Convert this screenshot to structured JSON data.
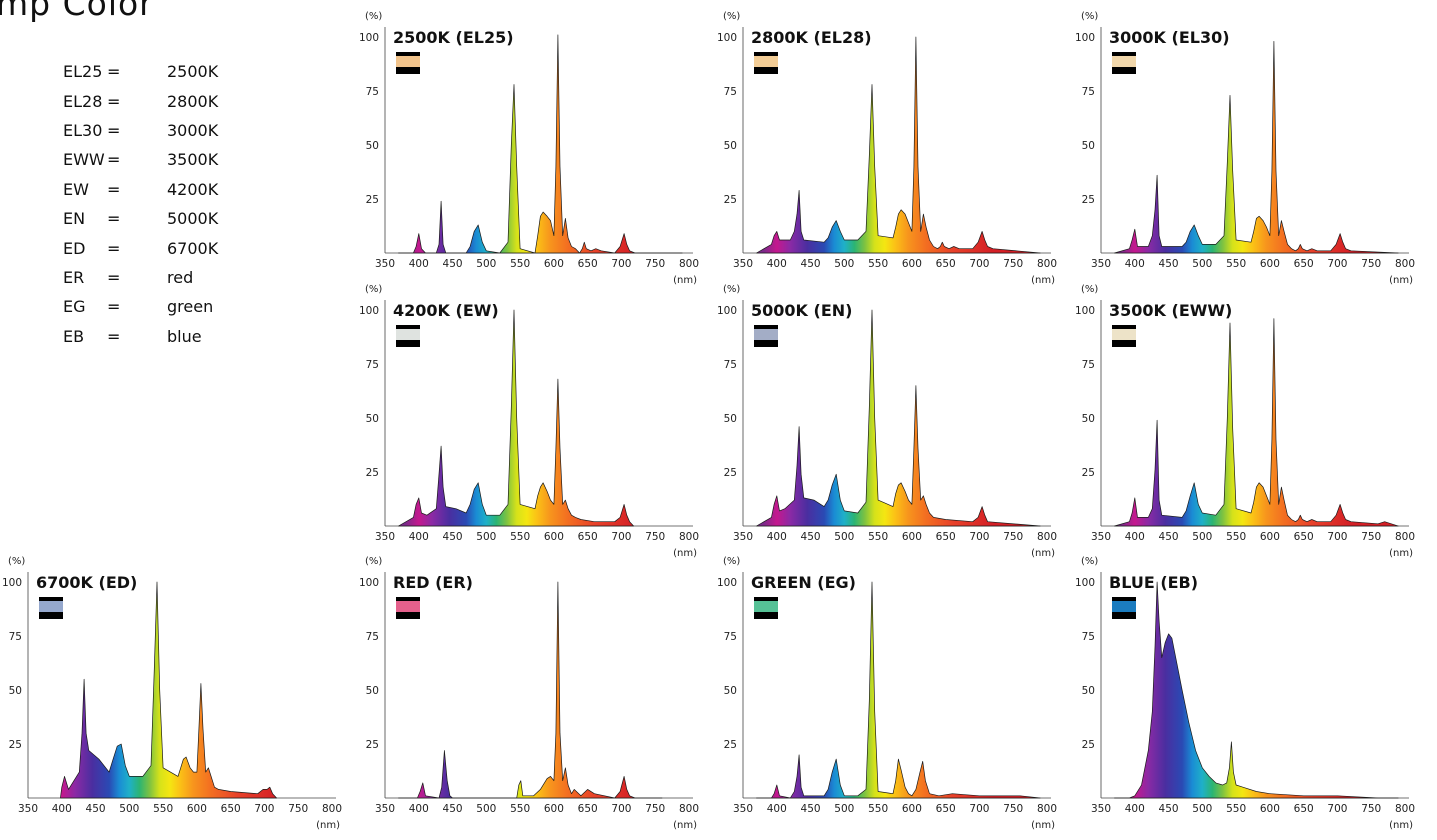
{
  "page": {
    "title": "mp Color"
  },
  "legend": [
    {
      "code": "EL25",
      "eq": "=",
      "value": "2500K"
    },
    {
      "code": "EL28",
      "eq": "=",
      "value": "2800K"
    },
    {
      "code": "EL30",
      "eq": "=",
      "value": "3000K"
    },
    {
      "code": "EWW",
      "eq": "=",
      "value": "3500K"
    },
    {
      "code": "EW",
      "eq": "=",
      "value": "4200K"
    },
    {
      "code": "EN",
      "eq": "=",
      "value": "5000K"
    },
    {
      "code": "ED",
      "eq": "=",
      "value": "6700K"
    },
    {
      "code": "ER",
      "eq": "=",
      "value": "red"
    },
    {
      "code": "EG",
      "eq": "=",
      "value": "green"
    },
    {
      "code": "EB",
      "eq": "=",
      "value": "blue"
    }
  ],
  "axis": {
    "y_unit": "(%)",
    "x_unit": "(nm)",
    "y_ticks": [
      25,
      50,
      75,
      100
    ],
    "x_ticks": [
      350,
      400,
      450,
      500,
      550,
      600,
      650,
      700,
      750,
      800
    ],
    "xlim": [
      350,
      800
    ],
    "ylim": [
      0,
      100
    ]
  },
  "chart_data": [
    {
      "type": "area",
      "title": "2500K (EL25)",
      "swatch": "#f2c48c",
      "x": [
        370,
        392,
        396,
        400,
        404,
        410,
        426,
        430,
        433,
        436,
        440,
        470,
        476,
        482,
        488,
        494,
        500,
        520,
        532,
        537,
        541,
        545,
        550,
        572,
        576,
        580,
        584,
        590,
        595,
        600,
        603,
        606,
        609,
        613,
        617,
        621,
        626,
        632,
        638,
        642,
        645,
        648,
        655,
        662,
        670,
        690,
        698,
        704,
        708,
        712,
        720,
        790
      ],
      "y": [
        0,
        0,
        3,
        9,
        2,
        0,
        0,
        4,
        24,
        4,
        0,
        0,
        3,
        10,
        13,
        5,
        1,
        0,
        5,
        50,
        78,
        40,
        2,
        0,
        8,
        17,
        19,
        17,
        15,
        8,
        40,
        101,
        40,
        8,
        16,
        7,
        3,
        2,
        0,
        2,
        5,
        2,
        1,
        2,
        1,
        0,
        3,
        9,
        4,
        1,
        0,
        0
      ]
    },
    {
      "type": "area",
      "title": "2800K (EL28)",
      "swatch": "#f3cd96",
      "x": [
        370,
        392,
        396,
        400,
        404,
        420,
        426,
        430,
        433,
        436,
        440,
        470,
        476,
        482,
        488,
        494,
        500,
        520,
        532,
        537,
        541,
        545,
        550,
        572,
        576,
        580,
        584,
        590,
        595,
        600,
        603,
        606,
        609,
        613,
        617,
        621,
        626,
        632,
        638,
        642,
        645,
        648,
        655,
        662,
        670,
        690,
        698,
        704,
        708,
        712,
        720,
        790
      ],
      "y": [
        0,
        4,
        8,
        10,
        6,
        6,
        10,
        18,
        29,
        10,
        6,
        5,
        7,
        12,
        15,
        10,
        6,
        6,
        10,
        45,
        78,
        40,
        8,
        7,
        12,
        18,
        20,
        18,
        14,
        10,
        40,
        100,
        40,
        10,
        18,
        12,
        6,
        3,
        2,
        3,
        5,
        3,
        2,
        3,
        2,
        2,
        5,
        10,
        6,
        3,
        2,
        0
      ]
    },
    {
      "type": "area",
      "title": "3000K (EL30)",
      "swatch": "#f1d7ab",
      "x": [
        370,
        392,
        396,
        400,
        404,
        420,
        426,
        430,
        433,
        436,
        440,
        470,
        476,
        482,
        488,
        494,
        500,
        520,
        532,
        537,
        541,
        545,
        550,
        572,
        576,
        580,
        584,
        590,
        595,
        600,
        603,
        606,
        609,
        613,
        617,
        621,
        626,
        632,
        638,
        642,
        645,
        648,
        655,
        662,
        670,
        690,
        698,
        704,
        708,
        712,
        720,
        790
      ],
      "y": [
        0,
        2,
        6,
        11,
        3,
        3,
        8,
        20,
        36,
        8,
        3,
        3,
        5,
        10,
        13,
        8,
        4,
        4,
        8,
        42,
        73,
        38,
        6,
        5,
        10,
        16,
        17,
        15,
        12,
        8,
        38,
        98,
        38,
        8,
        15,
        10,
        4,
        2,
        1,
        2,
        4,
        2,
        1,
        2,
        1,
        1,
        4,
        9,
        5,
        2,
        1,
        0
      ]
    },
    {
      "type": "area",
      "title": "4200K (EW)",
      "swatch": "#dfe3e0",
      "x": [
        370,
        392,
        396,
        400,
        404,
        412,
        426,
        430,
        433,
        436,
        440,
        455,
        470,
        476,
        482,
        488,
        494,
        500,
        520,
        532,
        537,
        541,
        545,
        550,
        572,
        576,
        580,
        584,
        590,
        595,
        600,
        603,
        606,
        609,
        613,
        617,
        621,
        626,
        632,
        640,
        660,
        690,
        698,
        704,
        708,
        712,
        718
      ],
      "y": [
        0,
        4,
        10,
        13,
        6,
        5,
        8,
        24,
        37,
        18,
        9,
        8,
        6,
        10,
        17,
        20,
        10,
        5,
        5,
        10,
        55,
        100,
        50,
        10,
        8,
        14,
        18,
        20,
        16,
        12,
        10,
        36,
        68,
        36,
        10,
        12,
        8,
        5,
        4,
        3,
        2,
        2,
        4,
        10,
        5,
        2,
        0
      ]
    },
    {
      "type": "area",
      "title": "5000K (EN)",
      "swatch": "#a3adc6",
      "x": [
        370,
        392,
        396,
        400,
        404,
        412,
        426,
        430,
        433,
        436,
        440,
        455,
        470,
        476,
        482,
        488,
        494,
        500,
        520,
        532,
        537,
        541,
        545,
        550,
        572,
        576,
        580,
        584,
        590,
        595,
        600,
        603,
        606,
        609,
        613,
        617,
        621,
        626,
        632,
        650,
        690,
        698,
        704,
        708,
        712,
        790
      ],
      "y": [
        0,
        4,
        10,
        14,
        7,
        8,
        12,
        28,
        46,
        24,
        13,
        12,
        9,
        12,
        19,
        24,
        12,
        7,
        6,
        11,
        55,
        100,
        50,
        12,
        9,
        15,
        19,
        20,
        16,
        12,
        10,
        36,
        65,
        36,
        12,
        14,
        10,
        6,
        4,
        3,
        2,
        4,
        9,
        5,
        2,
        0
      ]
    },
    {
      "type": "area",
      "title": "3500K (EWW)",
      "swatch": "#ede3c8",
      "x": [
        370,
        392,
        396,
        400,
        404,
        420,
        426,
        430,
        433,
        436,
        440,
        470,
        476,
        482,
        488,
        494,
        500,
        520,
        532,
        537,
        541,
        545,
        550,
        572,
        576,
        580,
        584,
        590,
        595,
        600,
        603,
        606,
        609,
        613,
        617,
        621,
        626,
        632,
        638,
        642,
        645,
        648,
        655,
        662,
        670,
        690,
        698,
        704,
        708,
        712,
        720,
        760,
        770,
        790
      ],
      "y": [
        0,
        2,
        6,
        13,
        4,
        4,
        8,
        26,
        49,
        12,
        5,
        4,
        7,
        14,
        20,
        10,
        6,
        5,
        10,
        50,
        94,
        45,
        8,
        6,
        11,
        18,
        20,
        18,
        14,
        10,
        40,
        96,
        40,
        10,
        18,
        12,
        5,
        3,
        2,
        3,
        5,
        3,
        2,
        3,
        2,
        2,
        5,
        10,
        6,
        3,
        2,
        1,
        2,
        0
      ]
    },
    {
      "type": "area",
      "title": "6700K (ED)",
      "swatch": "#95a8cd",
      "x": [
        398,
        400,
        404,
        410,
        426,
        430,
        433,
        436,
        440,
        455,
        470,
        476,
        482,
        488,
        494,
        500,
        520,
        532,
        537,
        541,
        545,
        550,
        572,
        576,
        580,
        584,
        590,
        595,
        600,
        603,
        606,
        609,
        613,
        617,
        621,
        626,
        632,
        650,
        690,
        698,
        704,
        708,
        712,
        718
      ],
      "y": [
        0,
        5,
        10,
        4,
        12,
        30,
        55,
        30,
        22,
        18,
        12,
        18,
        24,
        25,
        15,
        10,
        10,
        15,
        60,
        100,
        50,
        14,
        10,
        14,
        18,
        19,
        14,
        12,
        12,
        32,
        53,
        32,
        12,
        14,
        10,
        5,
        4,
        3,
        2,
        4,
        4,
        5,
        2,
        0
      ]
    },
    {
      "type": "area",
      "title": "RED (ER)",
      "swatch": "#e5608c",
      "x": [
        370,
        398,
        402,
        406,
        410,
        430,
        434,
        438,
        442,
        446,
        450,
        470,
        520,
        545,
        548,
        551,
        554,
        570,
        580,
        590,
        595,
        600,
        603,
        606,
        609,
        613,
        617,
        621,
        626,
        630,
        640,
        650,
        660,
        690,
        698,
        704,
        708,
        712,
        720,
        760
      ],
      "y": [
        0,
        0,
        3,
        7,
        1,
        0,
        5,
        22,
        8,
        1,
        0,
        0,
        0,
        0,
        6,
        8,
        1,
        1,
        4,
        9,
        10,
        8,
        30,
        100,
        30,
        8,
        14,
        6,
        2,
        4,
        1,
        4,
        2,
        0,
        3,
        10,
        4,
        1,
        0,
        0
      ]
    },
    {
      "type": "area",
      "title": "GREEN (EG)",
      "swatch": "#56c196",
      "x": [
        370,
        392,
        396,
        400,
        404,
        420,
        426,
        430,
        433,
        436,
        440,
        470,
        476,
        482,
        488,
        494,
        500,
        520,
        532,
        537,
        541,
        545,
        550,
        572,
        576,
        580,
        584,
        590,
        595,
        600,
        606,
        612,
        616,
        620,
        626,
        640,
        660,
        700,
        760,
        790
      ],
      "y": [
        0,
        0,
        2,
        6,
        1,
        0,
        3,
        10,
        20,
        5,
        1,
        1,
        4,
        12,
        18,
        6,
        1,
        1,
        4,
        45,
        100,
        40,
        3,
        2,
        8,
        18,
        13,
        5,
        2,
        1,
        4,
        12,
        17,
        8,
        2,
        1,
        2,
        1,
        1,
        0
      ]
    },
    {
      "type": "area",
      "title": "BLUE (EB)",
      "swatch": "#1b7cbf",
      "x": [
        370,
        392,
        400,
        410,
        420,
        426,
        430,
        433,
        436,
        440,
        445,
        450,
        455,
        460,
        470,
        480,
        490,
        500,
        510,
        520,
        530,
        536,
        540,
        543,
        546,
        550,
        560,
        580,
        600,
        650,
        700,
        760,
        790
      ],
      "y": [
        0,
        0,
        1,
        6,
        22,
        40,
        70,
        100,
        82,
        65,
        72,
        76,
        74,
        66,
        50,
        35,
        22,
        14,
        10,
        7,
        6,
        7,
        14,
        26,
        12,
        6,
        5,
        3,
        2,
        1,
        1,
        0,
        0
      ]
    }
  ]
}
